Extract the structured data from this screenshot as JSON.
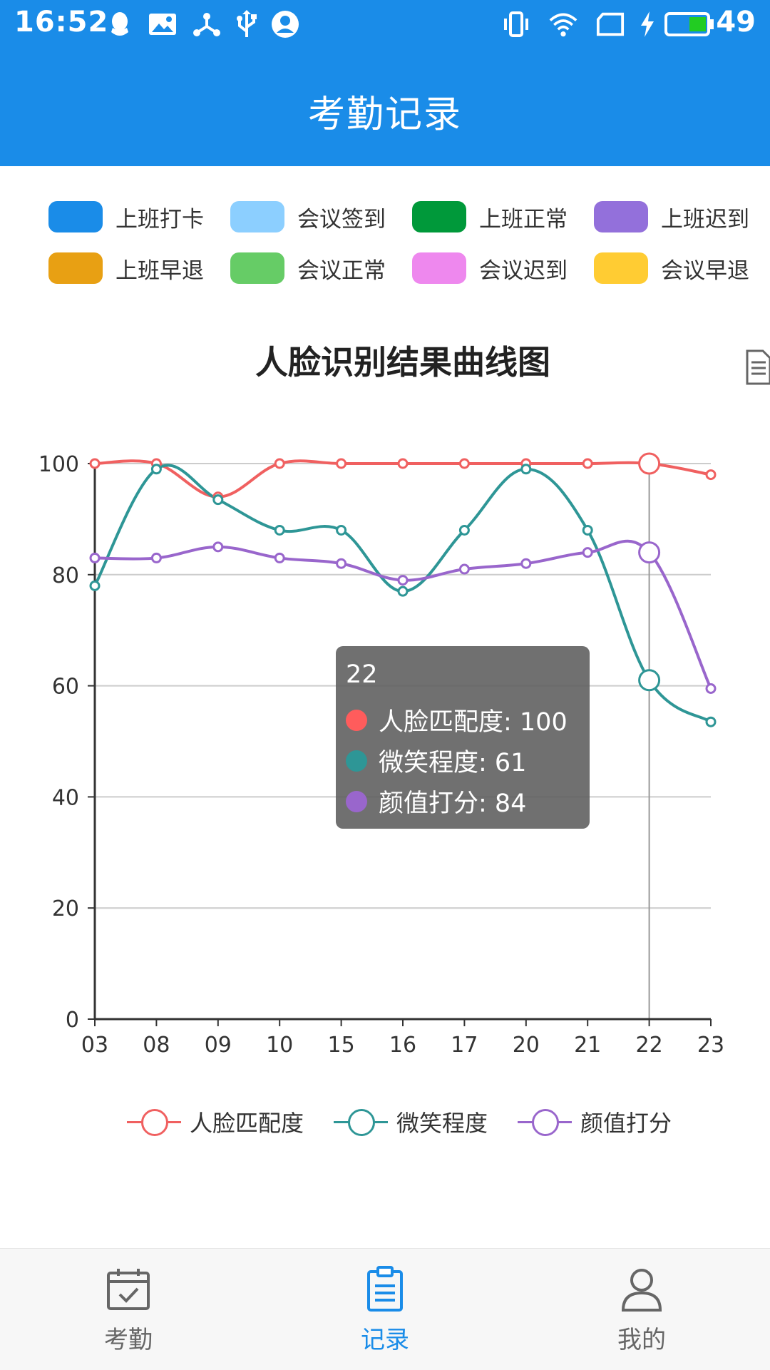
{
  "status_bar": {
    "time": "16:52",
    "battery": "49",
    "icons": [
      "qq-icon",
      "image-icon",
      "share-icon",
      "usb-icon",
      "account-icon",
      "vibrate-icon",
      "wifi-icon",
      "sim-icon",
      "charging-icon",
      "battery-icon"
    ]
  },
  "header": {
    "title": "考勤记录"
  },
  "attendance_types": [
    {
      "label": "上班打卡",
      "color": "#1a8ce8"
    },
    {
      "label": "会议签到",
      "color": "#8ccfff"
    },
    {
      "label": "上班正常",
      "color": "#00993a"
    },
    {
      "label": "上班迟到",
      "color": "#9370db"
    },
    {
      "label": "上班早退",
      "color": "#e8a013"
    },
    {
      "label": "会议正常",
      "color": "#66cc66"
    },
    {
      "label": "会议迟到",
      "color": "#ee88ee"
    },
    {
      "label": "会议早退",
      "color": "#ffcc33"
    }
  ],
  "chart_title": "人脸识别结果曲线图",
  "chart_data": {
    "type": "line",
    "title": "人脸识别结果曲线图",
    "categories": [
      "03",
      "08",
      "09",
      "10",
      "15",
      "16",
      "17",
      "20",
      "21",
      "22",
      "23"
    ],
    "ylim": [
      0,
      100
    ],
    "yticks": [
      0,
      20,
      40,
      60,
      80,
      100
    ],
    "grid": true,
    "legend_position": "bottom",
    "series": [
      {
        "name": "人脸匹配度",
        "color": "#f06060",
        "values": [
          100,
          100,
          94,
          100,
          100,
          100,
          100,
          100,
          100,
          100,
          98
        ]
      },
      {
        "name": "微笑程度",
        "color": "#2e9696",
        "values": [
          78,
          99,
          93.5,
          88,
          88,
          77,
          88,
          99,
          88,
          61,
          53.5
        ]
      },
      {
        "name": "颜值打分",
        "color": "#9966cc",
        "values": [
          83,
          83,
          85,
          83,
          82,
          79,
          81,
          82,
          84,
          84,
          59.5
        ]
      }
    ],
    "highlight_category": "22",
    "tooltip": {
      "title": "22",
      "rows": [
        {
          "label": "人脸匹配度: 100",
          "color": "#ff5c5c"
        },
        {
          "label": "微笑程度: 61",
          "color": "#2e9696"
        },
        {
          "label": "颜值打分: 84",
          "color": "#9966cc"
        }
      ]
    }
  },
  "bottom_nav": [
    {
      "label": "考勤",
      "icon": "calendar-check-icon",
      "active": false
    },
    {
      "label": "记录",
      "icon": "clipboard-list-icon",
      "active": true
    },
    {
      "label": "我的",
      "icon": "user-icon",
      "active": false
    }
  ]
}
